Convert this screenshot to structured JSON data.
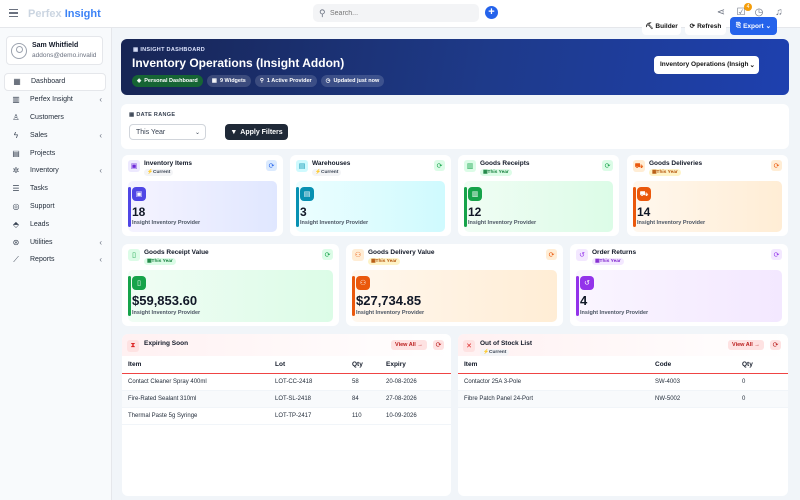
{
  "topbar": {
    "logo_a": "Perfex",
    "logo_b": "Insight",
    "search_placeholder": "Search...",
    "notification_count": "4"
  },
  "user": {
    "name": "Sam Whitfield",
    "email": "addons@demo.invalid"
  },
  "sidebar": {
    "items": [
      {
        "label": "Dashboard",
        "icon": "dashboard-icon"
      },
      {
        "label": "Perfex Insight",
        "icon": "chart-icon"
      },
      {
        "label": "Customers",
        "icon": "user-icon"
      },
      {
        "label": "Sales",
        "icon": "bolt-icon"
      },
      {
        "label": "Projects",
        "icon": "chart-line-icon"
      },
      {
        "label": "Inventory",
        "icon": "gear-icon"
      },
      {
        "label": "Tasks",
        "icon": "tasks-icon"
      },
      {
        "label": "Support",
        "icon": "lifebuoy-icon"
      },
      {
        "label": "Leads",
        "icon": "tag-icon"
      },
      {
        "label": "Utilities",
        "icon": "cog-icon"
      },
      {
        "label": "Reports",
        "icon": "line-chart-icon"
      }
    ]
  },
  "hero": {
    "kicker": "INSIGHT DASHBOARD",
    "title": "Inventory Operations (Insight Addon)",
    "chips": [
      "Personal Dashboard",
      "9 Widgets",
      "1 Active Provider",
      "Updated just now"
    ],
    "select_value": "Inventory Operations (Insigh",
    "builder": "Builder",
    "refresh": "Refresh",
    "export": "Export"
  },
  "filter": {
    "label": "DATE RANGE",
    "value": "This Year",
    "apply": "Apply Filters"
  },
  "provider": "Insight Inventory Provider",
  "widgets": [
    {
      "title": "Inventory Items",
      "badge": "Current",
      "value": "18"
    },
    {
      "title": "Warehouses",
      "badge": "Current",
      "value": "3"
    },
    {
      "title": "Goods Receipts",
      "badge": "This Year",
      "value": "12"
    },
    {
      "title": "Goods Deliveries",
      "badge": "This Year",
      "value": "14"
    },
    {
      "title": "Goods Receipt Value",
      "badge": "This Year",
      "value": "$59,853.60"
    },
    {
      "title": "Goods Delivery Value",
      "badge": "This Year",
      "value": "$27,734.85"
    },
    {
      "title": "Order Returns",
      "badge": "This Year",
      "value": "4"
    }
  ],
  "expiring": {
    "title": "Expiring Soon",
    "view_all": "View All →",
    "headers": [
      "Item",
      "Lot",
      "Qty",
      "Expiry"
    ],
    "rows": [
      [
        "Contact Cleaner Spray 400ml",
        "LOT-CC-2418",
        "58",
        "20-08-2026"
      ],
      [
        "Fire-Rated Sealant 310ml",
        "LOT-SL-2418",
        "84",
        "27-08-2026"
      ],
      [
        "Thermal Paste 5g Syringe",
        "LOT-TP-2417",
        "110",
        "10-09-2026"
      ]
    ]
  },
  "outofstock": {
    "title": "Out of Stock List",
    "badge": "Current",
    "view_all": "View All →",
    "headers": [
      "Item",
      "Code",
      "Qty"
    ],
    "rows": [
      [
        "Contactor 25A 3-Pole",
        "SW-4003",
        "0"
      ],
      [
        "Fibre Patch Panel 24-Port",
        "NW-5002",
        "0"
      ]
    ]
  }
}
